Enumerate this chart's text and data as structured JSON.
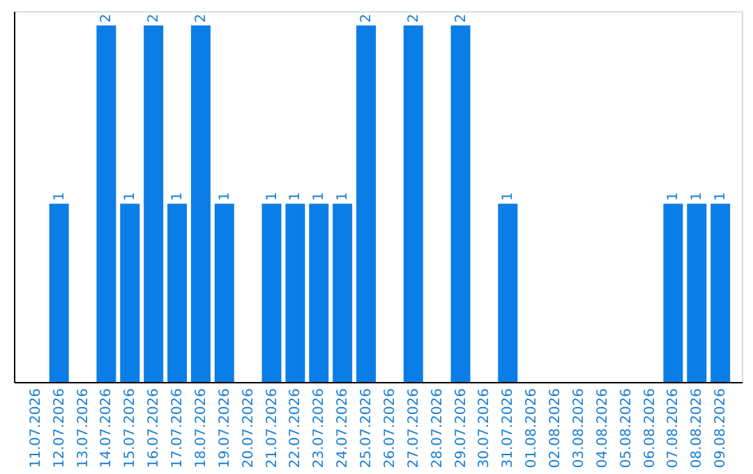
{
  "chart_data": {
    "type": "bar",
    "categories": [
      "11.07.2026",
      "12.07.2026",
      "13.07.2026",
      "14.07.2026",
      "15.07.2026",
      "16.07.2026",
      "17.07.2026",
      "18.07.2026",
      "19.07.2026",
      "20.07.2026",
      "21.07.2026",
      "22.07.2026",
      "23.07.2026",
      "24.07.2026",
      "25.07.2026",
      "26.07.2026",
      "27.07.2026",
      "28.07.2026",
      "29.07.2026",
      "30.07.2026",
      "31.07.2026",
      "01.08.2026",
      "02.08.2026",
      "03.08.2026",
      "04.08.2026",
      "05.08.2026",
      "06.08.2026",
      "07.08.2026",
      "08.08.2026",
      "09.08.2026"
    ],
    "values": [
      0,
      1,
      0,
      2,
      1,
      2,
      1,
      2,
      1,
      0,
      1,
      1,
      1,
      1,
      2,
      0,
      2,
      0,
      2,
      0,
      1,
      0,
      0,
      0,
      0,
      0,
      0,
      1,
      1,
      1
    ],
    "value_labels": [
      null,
      "1",
      null,
      "2",
      "1",
      "2",
      "1",
      "2",
      "1",
      null,
      "1",
      "1",
      "1",
      "1",
      "2",
      null,
      "2",
      null,
      "2",
      null,
      "1",
      null,
      null,
      null,
      null,
      null,
      null,
      "1",
      "1",
      "1"
    ],
    "color": "#0a7ee6",
    "ylim": [
      0,
      2.08
    ],
    "tick_labels": "x",
    "grid": false
  }
}
